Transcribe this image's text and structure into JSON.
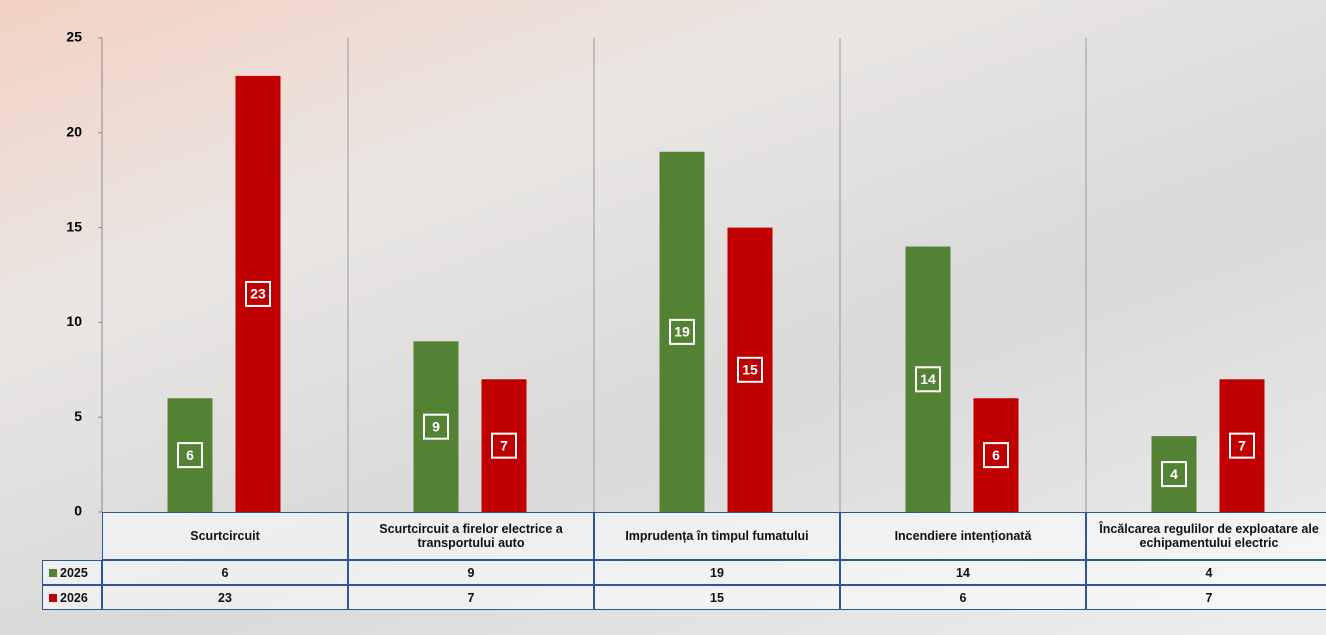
{
  "chart_data": {
    "type": "bar",
    "categories": [
      "Scurtcircuit",
      "Scurtcircuit a firelor electrice a transportului auto",
      "Imprudența în timpul fumatului",
      "Incendiere intenționată",
      "Încălcarea regulilor de exploatare ale echipamentului electric"
    ],
    "series": [
      {
        "name": "2025",
        "color": "#548235",
        "values": [
          6,
          9,
          19,
          14,
          4
        ]
      },
      {
        "name": "2026",
        "color": "#c00000",
        "values": [
          23,
          7,
          15,
          6,
          7
        ]
      }
    ],
    "ylim": [
      0,
      25
    ],
    "yticks": [
      0,
      5,
      10,
      15,
      20,
      25
    ],
    "grid": false
  }
}
